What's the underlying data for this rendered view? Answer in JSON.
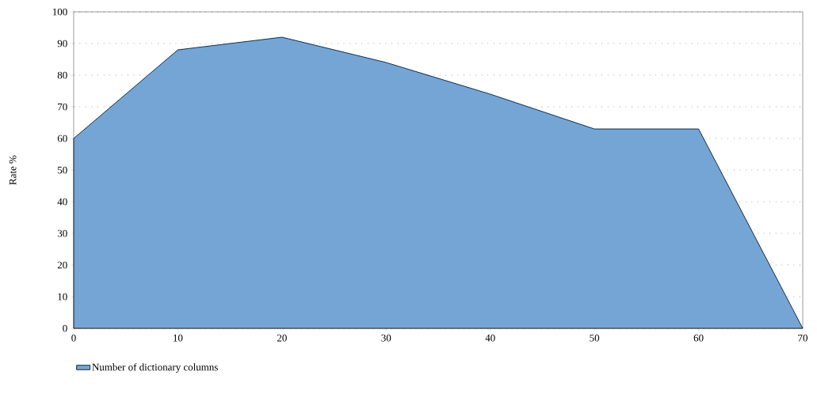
{
  "chart_data": {
    "type": "area",
    "ylabel": "Rate %",
    "x": [
      0,
      10,
      20,
      30,
      40,
      50,
      60,
      70
    ],
    "series": [
      {
        "name": "Number of dictionary columns",
        "color": "#74a5d5",
        "values": [
          60,
          88,
          92,
          84,
          74,
          63,
          63,
          0
        ]
      }
    ],
    "xlim": [
      0,
      70
    ],
    "xticks": [
      0,
      10,
      20,
      30,
      40,
      50,
      60,
      70
    ],
    "ylim": [
      0,
      100
    ],
    "yticks": [
      0,
      10,
      20,
      30,
      40,
      50,
      60,
      70,
      80,
      90,
      100
    ],
    "grid": "y",
    "legend": "bottom left"
  }
}
